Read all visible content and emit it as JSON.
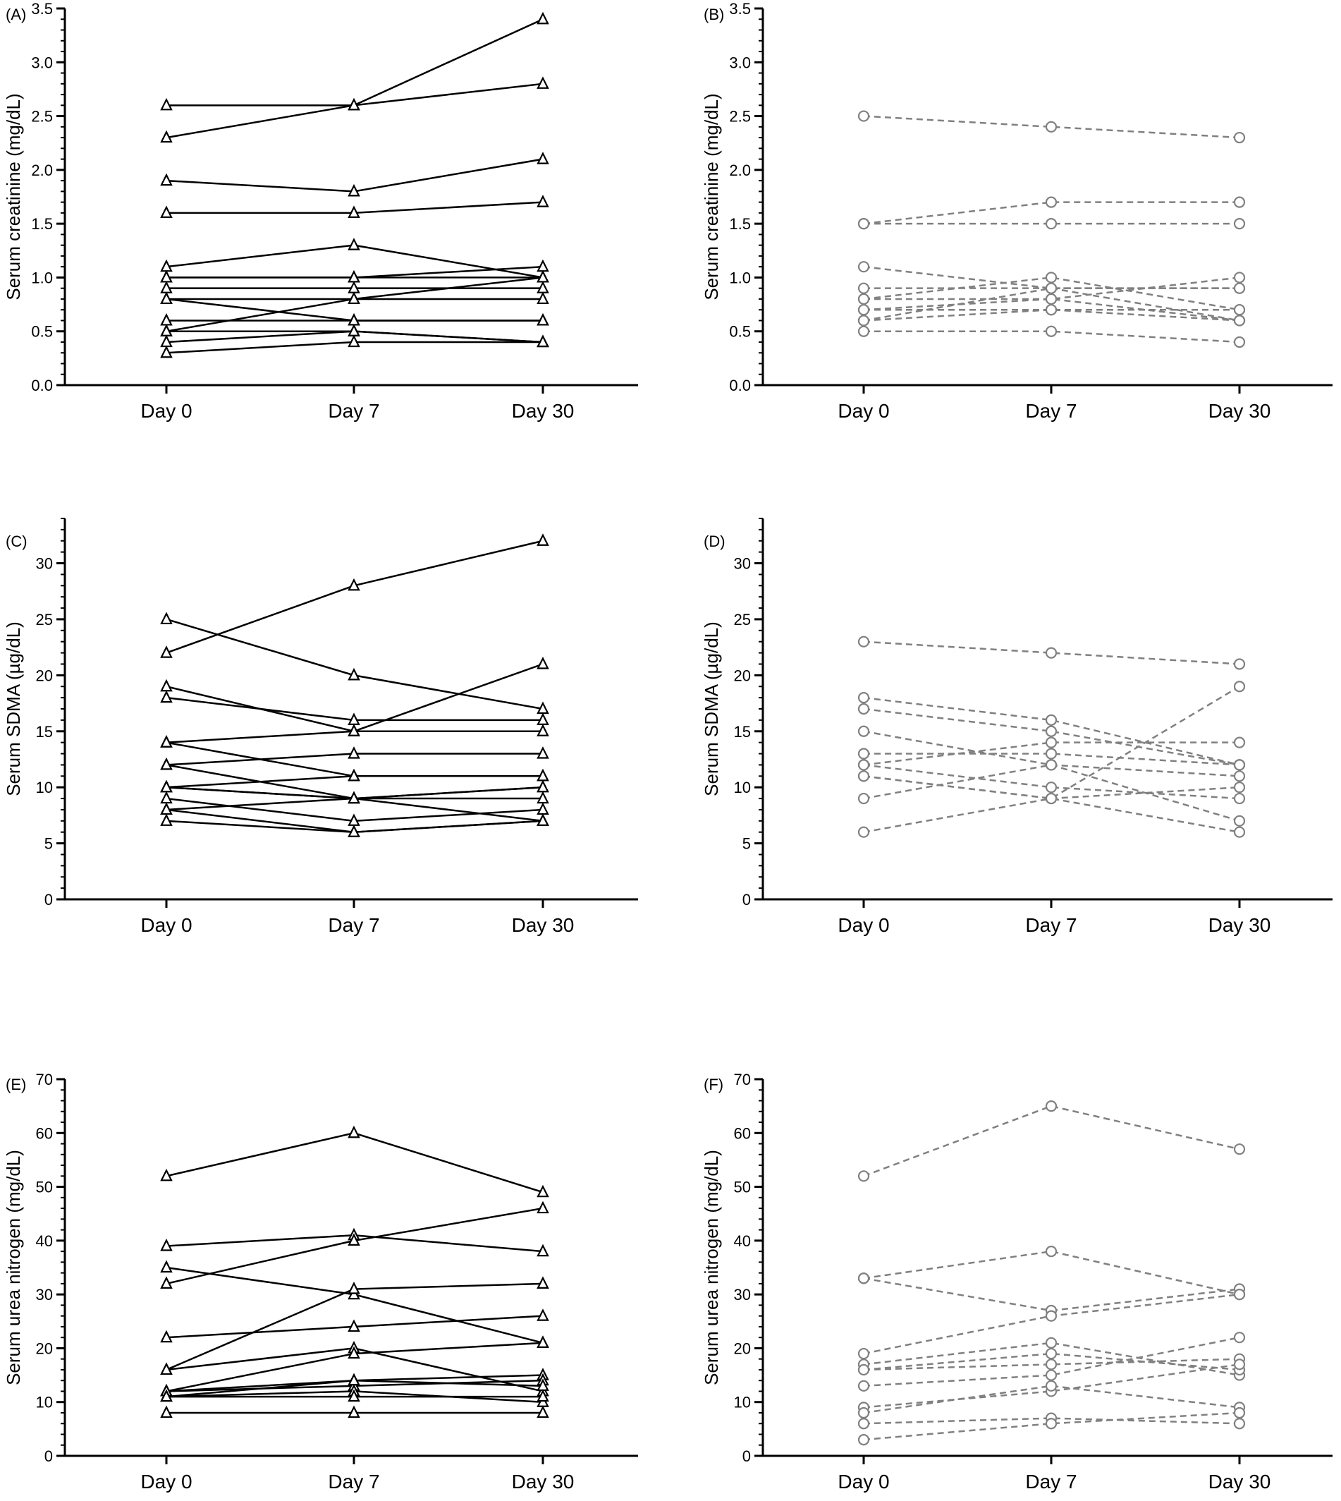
{
  "chart_data": [
    {
      "panel": "(A)",
      "type": "line",
      "marker": "triangle",
      "style": "solid",
      "color": "#000000",
      "ylabel": "Serum creatinine (mg/dL)",
      "ylim": [
        0,
        3.5
      ],
      "yticks": [
        "0.0",
        "0.5",
        "1.0",
        "1.5",
        "2.0",
        "2.5",
        "3.0",
        "3.5"
      ],
      "categories": [
        "Day 0",
        "Day 7",
        "Day 30"
      ],
      "series": [
        {
          "values": [
            2.6,
            2.6,
            3.4
          ]
        },
        {
          "values": [
            2.3,
            2.6,
            2.8
          ]
        },
        {
          "values": [
            1.9,
            1.8,
            2.1
          ]
        },
        {
          "values": [
            1.6,
            1.6,
            1.7
          ]
        },
        {
          "values": [
            1.1,
            1.3,
            1.0
          ]
        },
        {
          "values": [
            1.0,
            1.0,
            1.1
          ]
        },
        {
          "values": [
            1.0,
            1.0,
            1.0
          ]
        },
        {
          "values": [
            0.9,
            0.9,
            0.9
          ]
        },
        {
          "values": [
            0.8,
            0.8,
            0.8
          ]
        },
        {
          "values": [
            0.8,
            0.6,
            0.6
          ]
        },
        {
          "values": [
            0.6,
            0.6,
            0.6
          ]
        },
        {
          "values": [
            0.5,
            0.8,
            1.0
          ]
        },
        {
          "values": [
            0.5,
            0.5,
            0.4
          ]
        },
        {
          "values": [
            0.4,
            0.5,
            0.4
          ]
        },
        {
          "values": [
            0.3,
            0.4,
            0.4
          ]
        }
      ]
    },
    {
      "panel": "(B)",
      "type": "line",
      "marker": "circle",
      "style": "dashed",
      "color": "#808080",
      "ylabel": "Serum creatinine (mg/dL)",
      "ylim": [
        0,
        3.5
      ],
      "yticks": [
        "0.0",
        "0.5",
        "1.0",
        "1.5",
        "2.0",
        "2.5",
        "3.0",
        "3.5"
      ],
      "categories": [
        "Day 0",
        "Day 7",
        "Day 30"
      ],
      "series": [
        {
          "values": [
            2.5,
            2.4,
            2.3
          ]
        },
        {
          "values": [
            1.5,
            1.7,
            1.7
          ]
        },
        {
          "values": [
            1.5,
            1.5,
            1.5
          ]
        },
        {
          "values": [
            1.1,
            0.9,
            0.9
          ]
        },
        {
          "values": [
            0.9,
            0.9,
            0.9
          ]
        },
        {
          "values": [
            0.8,
            1.0,
            0.7
          ]
        },
        {
          "values": [
            0.8,
            0.8,
            1.0
          ]
        },
        {
          "values": [
            0.7,
            0.7,
            0.7
          ]
        },
        {
          "values": [
            0.7,
            0.8,
            0.6
          ]
        },
        {
          "values": [
            0.6,
            0.9,
            0.6
          ]
        },
        {
          "values": [
            0.6,
            0.7,
            0.6
          ]
        },
        {
          "values": [
            0.5,
            0.5,
            0.4
          ]
        }
      ]
    },
    {
      "panel": "(C)",
      "type": "line",
      "marker": "triangle",
      "style": "solid",
      "color": "#000000",
      "ylabel": "Serum SDMA (µg/dL)",
      "ylim": [
        0,
        34
      ],
      "yticks": [
        "0",
        "5",
        "10",
        "15",
        "20",
        "25",
        "30"
      ],
      "categories": [
        "Day 0",
        "Day 7",
        "Day 30"
      ],
      "series": [
        {
          "values": [
            25,
            20,
            17
          ]
        },
        {
          "values": [
            22,
            28,
            32
          ]
        },
        {
          "values": [
            19,
            15,
            15
          ]
        },
        {
          "values": [
            18,
            16,
            16
          ]
        },
        {
          "values": [
            14,
            15,
            21
          ]
        },
        {
          "values": [
            14,
            11,
            11
          ]
        },
        {
          "values": [
            12,
            13,
            13
          ]
        },
        {
          "values": [
            12,
            9,
            9
          ]
        },
        {
          "values": [
            10,
            9,
            10
          ]
        },
        {
          "values": [
            10,
            9,
            7
          ]
        },
        {
          "values": [
            10,
            11,
            11
          ]
        },
        {
          "values": [
            9,
            7,
            8
          ]
        },
        {
          "values": [
            8,
            6,
            7
          ]
        },
        {
          "values": [
            8,
            9,
            10
          ]
        },
        {
          "values": [
            7,
            6,
            7
          ]
        }
      ]
    },
    {
      "panel": "(D)",
      "type": "line",
      "marker": "circle",
      "style": "dashed",
      "color": "#808080",
      "ylabel": "Serum SDMA (µg/dL)",
      "ylim": [
        0,
        34
      ],
      "yticks": [
        "0",
        "5",
        "10",
        "15",
        "20",
        "25",
        "30"
      ],
      "categories": [
        "Day 0",
        "Day 7",
        "Day 30"
      ],
      "series": [
        {
          "values": [
            23,
            22,
            21
          ]
        },
        {
          "values": [
            18,
            16,
            12
          ]
        },
        {
          "values": [
            17,
            15,
            12
          ]
        },
        {
          "values": [
            15,
            12,
            7
          ]
        },
        {
          "values": [
            13,
            13,
            12
          ]
        },
        {
          "values": [
            12,
            14,
            14
          ]
        },
        {
          "values": [
            12,
            10,
            9
          ]
        },
        {
          "values": [
            11,
            9,
            6
          ]
        },
        {
          "values": [
            11,
            9,
            19
          ]
        },
        {
          "values": [
            9,
            12,
            11
          ]
        },
        {
          "values": [
            6,
            9,
            10
          ]
        }
      ]
    },
    {
      "panel": "(E)",
      "type": "line",
      "marker": "triangle",
      "style": "solid",
      "color": "#000000",
      "ylabel": "Serum urea nitrogen (mg/dL)",
      "ylim": [
        0,
        70
      ],
      "yticks": [
        "0",
        "10",
        "20",
        "30",
        "40",
        "50",
        "60",
        "70"
      ],
      "categories": [
        "Day 0",
        "Day 7",
        "Day 30"
      ],
      "series": [
        {
          "values": [
            52,
            60,
            49
          ]
        },
        {
          "values": [
            39,
            41,
            38
          ]
        },
        {
          "values": [
            35,
            30,
            21
          ]
        },
        {
          "values": [
            32,
            40,
            46
          ]
        },
        {
          "values": [
            22,
            24,
            26
          ]
        },
        {
          "values": [
            16,
            31,
            32
          ]
        },
        {
          "values": [
            16,
            20,
            12
          ]
        },
        {
          "values": [
            12,
            19,
            21
          ]
        },
        {
          "values": [
            12,
            14,
            15
          ]
        },
        {
          "values": [
            12,
            13,
            14
          ]
        },
        {
          "values": [
            11,
            12,
            10
          ]
        },
        {
          "values": [
            11,
            11,
            11
          ]
        },
        {
          "values": [
            11,
            14,
            13
          ]
        },
        {
          "values": [
            8,
            8,
            8
          ]
        }
      ]
    },
    {
      "panel": "(F)",
      "type": "line",
      "marker": "circle",
      "style": "dashed",
      "color": "#808080",
      "ylabel": "Serum urea nitrogen (mg/dL)",
      "ylim": [
        0,
        70
      ],
      "yticks": [
        "0",
        "10",
        "20",
        "30",
        "40",
        "50",
        "60",
        "70"
      ],
      "categories": [
        "Day 0",
        "Day 7",
        "Day 30"
      ],
      "series": [
        {
          "values": [
            52,
            65,
            57
          ]
        },
        {
          "values": [
            33,
            38,
            30
          ]
        },
        {
          "values": [
            33,
            27,
            31
          ]
        },
        {
          "values": [
            19,
            26,
            30
          ]
        },
        {
          "values": [
            17,
            21,
            15
          ]
        },
        {
          "values": [
            16,
            19,
            16
          ]
        },
        {
          "values": [
            16,
            17,
            18
          ]
        },
        {
          "values": [
            13,
            15,
            22
          ]
        },
        {
          "values": [
            9,
            12,
            17
          ]
        },
        {
          "values": [
            8,
            13,
            9
          ]
        },
        {
          "values": [
            6,
            7,
            6
          ]
        },
        {
          "values": [
            3,
            6,
            8
          ]
        }
      ]
    }
  ]
}
